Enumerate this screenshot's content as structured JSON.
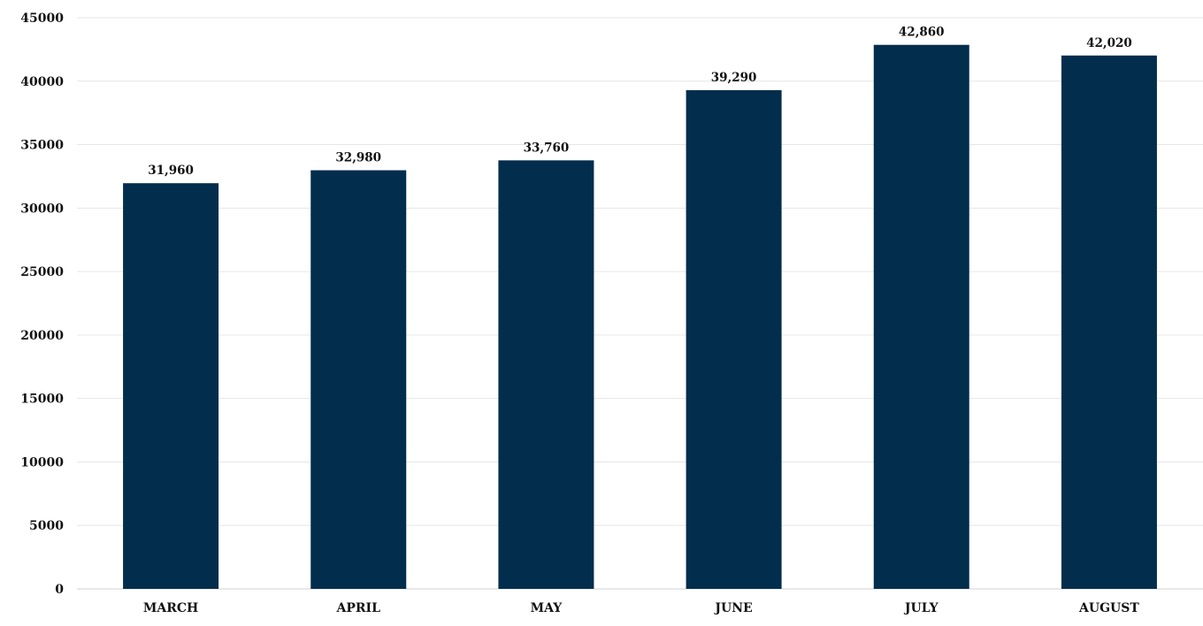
{
  "chart_data": {
    "type": "bar",
    "title": "",
    "xlabel": "",
    "ylabel": "",
    "categories": [
      "MARCH",
      "APRIL",
      "MAY",
      "JUNE",
      "JULY",
      "AUGUST"
    ],
    "values": [
      31960,
      32980,
      33760,
      39290,
      42860,
      42020
    ],
    "data_labels": [
      "31,960",
      "32,980",
      "33,760",
      "39,290",
      "42,860",
      "42,020"
    ],
    "ylim": [
      0,
      45000
    ],
    "y_ticks": [
      0,
      5000,
      10000,
      15000,
      20000,
      25000,
      30000,
      35000,
      40000,
      45000
    ],
    "y_tick_labels": [
      "0",
      "5000",
      "10000",
      "15000",
      "20000",
      "25000",
      "30000",
      "35000",
      "40000",
      "45000"
    ],
    "grid": true,
    "legend": "none",
    "bar_color": "#032d4d"
  }
}
